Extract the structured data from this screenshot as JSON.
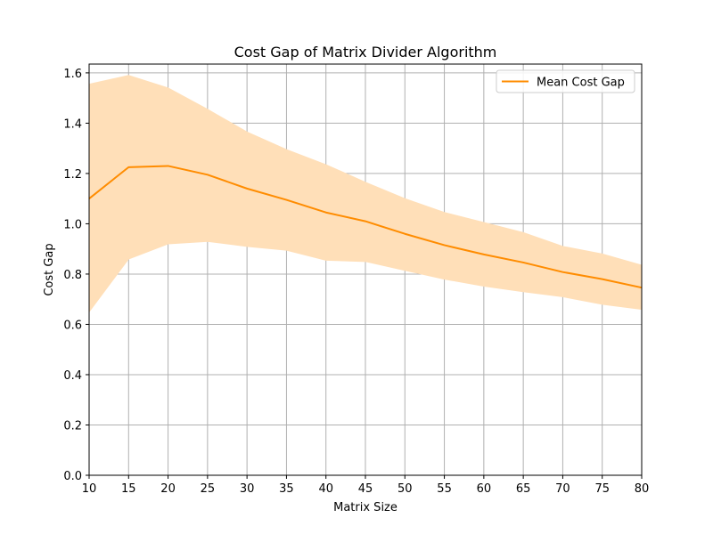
{
  "chart_data": {
    "type": "line",
    "title": "Cost Gap of Matrix Divider Algorithm",
    "xlabel": "Matrix Size",
    "ylabel": "Cost Gap",
    "xlim": [
      10,
      80
    ],
    "ylim": [
      0.0,
      1.6
    ],
    "xticks": [
      10,
      15,
      20,
      25,
      30,
      35,
      40,
      45,
      50,
      55,
      60,
      65,
      70,
      75,
      80
    ],
    "xtick_labels": [
      "10",
      "15",
      "20",
      "25",
      "30",
      "35",
      "40",
      "45",
      "50",
      "55",
      "60",
      "65",
      "70",
      "75",
      "80"
    ],
    "yticks": [
      0.0,
      0.2,
      0.4,
      0.6,
      0.8,
      1.0,
      1.2,
      1.4,
      1.6
    ],
    "ytick_labels": [
      "0.0",
      "0.2",
      "0.4",
      "0.6",
      "0.8",
      "1.0",
      "1.2",
      "1.4",
      "1.6"
    ],
    "grid": true,
    "legend_position": "top-right",
    "x": [
      10,
      15,
      20,
      25,
      30,
      35,
      40,
      45,
      50,
      55,
      60,
      65,
      70,
      75,
      80
    ],
    "series": [
      {
        "name": "Mean Cost Gap",
        "color": "#ff8c00",
        "values": [
          1.1,
          1.225,
          1.23,
          1.195,
          1.14,
          1.095,
          1.045,
          1.01,
          0.96,
          0.915,
          0.878,
          0.846,
          0.808,
          0.78,
          0.746
        ]
      }
    ],
    "band": {
      "color": "#ffdfb8",
      "lower": [
        0.65,
        0.86,
        0.92,
        0.93,
        0.91,
        0.895,
        0.855,
        0.85,
        0.815,
        0.78,
        0.752,
        0.73,
        0.71,
        0.68,
        0.66
      ],
      "upper": [
        1.555,
        1.59,
        1.54,
        1.455,
        1.365,
        1.295,
        1.235,
        1.165,
        1.1,
        1.045,
        1.005,
        0.965,
        0.91,
        0.88,
        0.835
      ]
    }
  }
}
